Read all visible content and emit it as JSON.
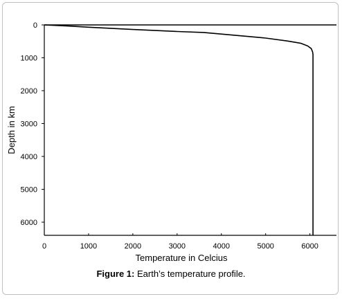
{
  "caption": {
    "label": "Figure 1:",
    "text": "Earth’s temperature profile."
  },
  "chart_data": {
    "type": "line",
    "xlabel": "Temperature in Celcius",
    "ylabel": "Depth in km",
    "xlim": [
      0,
      6600
    ],
    "ylim": [
      0,
      6400
    ],
    "y_inverted": true,
    "x_ticks": [
      0,
      1000,
      2000,
      3000,
      4000,
      5000,
      6000
    ],
    "y_ticks": [
      0,
      1000,
      2000,
      3000,
      4000,
      5000,
      6000
    ],
    "grid": false,
    "series": [
      {
        "x": [
          0,
          500,
          1000,
          2000,
          3000,
          3600,
          4500,
          5000,
          5500,
          5800,
          5950,
          6030,
          6060,
          6070,
          6070,
          6070
        ],
        "y": [
          0,
          30,
          70,
          140,
          200,
          230,
          340,
          400,
          490,
          560,
          640,
          720,
          820,
          900,
          3000,
          6400
        ]
      }
    ]
  }
}
